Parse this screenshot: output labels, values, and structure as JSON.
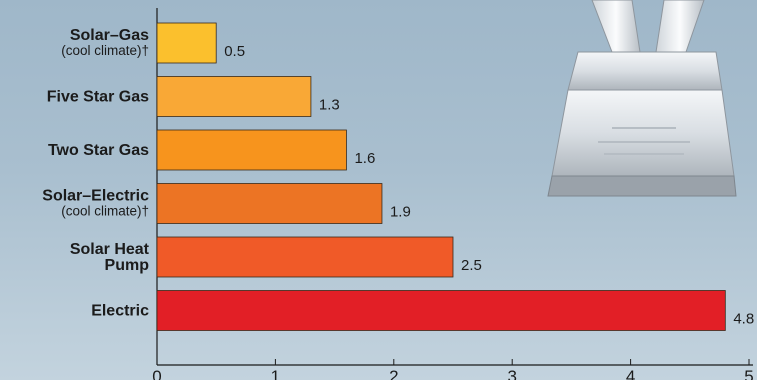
{
  "chart_data": {
    "type": "bar",
    "orientation": "horizontal",
    "categories": [
      {
        "label": "Solar–Gas",
        "sublabel": "(cool climate)†"
      },
      {
        "label": "Five Star Gas",
        "sublabel": ""
      },
      {
        "label": "Two Star Gas",
        "sublabel": ""
      },
      {
        "label": "Solar–Electric",
        "sublabel": "(cool climate)†"
      },
      {
        "label": "Solar Heat\nPump",
        "sublabel": ""
      },
      {
        "label": "Electric",
        "sublabel": ""
      }
    ],
    "values": [
      0.5,
      1.3,
      1.6,
      1.9,
      2.5,
      4.8
    ],
    "value_labels": [
      "0.5",
      "1.3",
      "1.6",
      "1.9",
      "2.5",
      "4.8"
    ],
    "bar_colors": [
      "#fbc02d",
      "#f9a836",
      "#f7941d",
      "#ec7424",
      "#f05a28",
      "#e21f26"
    ],
    "xlim": [
      0,
      5
    ],
    "xticks": [
      0,
      1,
      2,
      3,
      4,
      5
    ],
    "xtick_labels": [
      "0",
      "1",
      "2",
      "3",
      "4",
      "5"
    ],
    "title": "",
    "xlabel": "",
    "ylabel": "",
    "grid": false,
    "legend": "none"
  },
  "colors": {
    "background_top": "#9fb7c9",
    "background_bottom": "#c3d3de",
    "axis": "#1b1b1b",
    "text": "#1b1b1b"
  }
}
